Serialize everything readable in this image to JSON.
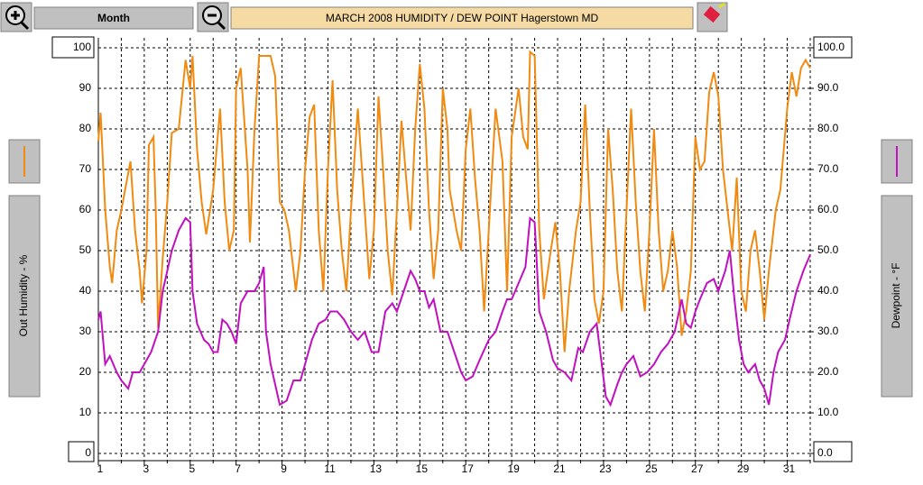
{
  "toolbar": {
    "period": "Month"
  },
  "chart_data": {
    "type": "line",
    "title": "MARCH 2008    HUMIDITY / DEW POINT  Hagerstown MD",
    "xlim": [
      1,
      32
    ],
    "xticks": [
      1,
      3,
      5,
      7,
      9,
      11,
      13,
      15,
      17,
      19,
      21,
      23,
      25,
      27,
      29,
      31
    ],
    "x_minor_ticks": [
      2,
      4,
      6,
      8,
      10,
      12,
      14,
      16,
      18,
      20,
      22,
      24,
      26,
      28,
      30,
      32
    ],
    "ylim": [
      0,
      100
    ],
    "yticks": [
      0,
      10,
      20,
      30,
      40,
      50,
      60,
      70,
      80,
      90,
      100
    ],
    "y2lim": [
      0,
      100
    ],
    "y2ticks": [
      {
        "value": 0,
        "label": "0.0"
      },
      {
        "value": 10,
        "label": "10.0"
      },
      {
        "value": 20,
        "label": "20.0"
      },
      {
        "value": 30,
        "label": "30.0"
      },
      {
        "value": 40,
        "label": "40.0"
      },
      {
        "value": 50,
        "label": "50.0"
      },
      {
        "value": 60,
        "label": "60.0"
      },
      {
        "value": 70,
        "label": "70.0"
      },
      {
        "value": 80,
        "label": "80.0"
      },
      {
        "value": 90,
        "label": "90.0"
      },
      {
        "value": 100,
        "label": "100.0"
      }
    ],
    "grid": true,
    "series": [
      {
        "name": "Out Humidity - %",
        "color": "#f08a10",
        "x": [
          1.0,
          1.1,
          1.3,
          1.5,
          1.6,
          1.8,
          2.0,
          2.2,
          2.4,
          2.6,
          2.8,
          2.9,
          3.1,
          3.2,
          3.4,
          3.5,
          3.6,
          3.8,
          4.0,
          4.2,
          4.5,
          4.8,
          5.0,
          5.1,
          5.3,
          5.5,
          5.7,
          6.0,
          6.3,
          6.5,
          6.7,
          6.9,
          7.0,
          7.2,
          7.5,
          7.6,
          7.8,
          8.0,
          8.5,
          8.7,
          8.9,
          9.1,
          9.3,
          9.6,
          9.8,
          10.0,
          10.2,
          10.4,
          10.6,
          10.8,
          11.0,
          11.2,
          11.4,
          11.6,
          11.8,
          12.0,
          12.3,
          12.6,
          12.8,
          13.0,
          13.2,
          13.4,
          13.6,
          13.8,
          14.0,
          14.2,
          14.4,
          14.6,
          14.8,
          15.0,
          15.2,
          15.4,
          15.6,
          15.8,
          16.0,
          16.2,
          16.3,
          16.6,
          16.8,
          17.0,
          17.2,
          17.4,
          17.6,
          17.8,
          18.0,
          18.3,
          18.6,
          18.8,
          19.0,
          19.3,
          19.5,
          19.7,
          19.8,
          20.0,
          20.2,
          20.4,
          20.7,
          20.9,
          21.1,
          21.3,
          21.5,
          21.8,
          22.0,
          22.2,
          22.4,
          22.6,
          22.8,
          23.0,
          23.2,
          23.4,
          23.6,
          23.8,
          24.0,
          24.2,
          24.4,
          24.6,
          24.8,
          25.0,
          25.2,
          25.4,
          25.6,
          25.8,
          26.0,
          26.2,
          26.4,
          26.6,
          26.8,
          27.0,
          27.2,
          27.4,
          27.6,
          27.8,
          28.0,
          28.2,
          28.4,
          28.6,
          28.8,
          29.0,
          29.2,
          29.4,
          29.6,
          29.8,
          30.0,
          30.2,
          30.5,
          30.7,
          31.0,
          31.2,
          31.4,
          31.6,
          31.8,
          32.0
        ],
        "values": [
          77,
          84,
          60,
          46,
          42,
          55,
          60,
          66,
          72,
          55,
          45,
          37,
          50,
          76,
          78,
          60,
          31,
          48,
          62,
          79,
          80,
          97,
          90,
          98,
          75,
          62,
          54,
          65,
          85,
          62,
          50,
          55,
          90,
          95,
          70,
          52,
          80,
          98,
          98,
          93,
          62,
          60,
          55,
          40,
          50,
          70,
          83,
          86,
          55,
          40,
          70,
          92,
          65,
          50,
          40,
          60,
          85,
          60,
          43,
          55,
          88,
          70,
          50,
          39,
          60,
          82,
          68,
          55,
          80,
          96,
          85,
          60,
          43,
          55,
          90,
          80,
          65,
          55,
          50,
          75,
          85,
          68,
          55,
          35,
          55,
          85,
          72,
          40,
          78,
          90,
          78,
          75,
          99,
          98,
          55,
          38,
          50,
          57,
          45,
          25,
          40,
          55,
          62,
          86,
          60,
          38,
          32,
          40,
          80,
          65,
          45,
          35,
          60,
          85,
          62,
          45,
          35,
          55,
          80,
          55,
          40,
          45,
          55,
          46,
          29,
          35,
          45,
          78,
          70,
          72,
          89,
          94,
          88,
          70,
          60,
          50,
          68,
          40,
          35,
          50,
          55,
          45,
          33,
          45,
          60,
          65,
          85,
          94,
          88,
          95,
          97,
          95
        ]
      },
      {
        "name": "Dewpoint - °F",
        "color": "#c010c0",
        "axis": "y2",
        "x": [
          1.0,
          1.1,
          1.3,
          1.5,
          1.8,
          2.0,
          2.3,
          2.5,
          2.8,
          3.0,
          3.3,
          3.6,
          3.8,
          4.0,
          4.2,
          4.5,
          4.8,
          5.0,
          5.1,
          5.3,
          5.6,
          5.8,
          6.0,
          6.2,
          6.4,
          6.6,
          6.8,
          7.0,
          7.2,
          7.5,
          7.8,
          8.0,
          8.2,
          8.3,
          8.5,
          8.7,
          8.9,
          9.2,
          9.5,
          9.8,
          10.0,
          10.3,
          10.6,
          10.9,
          11.1,
          11.4,
          11.7,
          12.0,
          12.3,
          12.6,
          12.9,
          13.2,
          13.5,
          13.8,
          14.0,
          14.3,
          14.6,
          14.8,
          15.0,
          15.2,
          15.4,
          15.6,
          15.9,
          16.2,
          16.5,
          16.8,
          17.0,
          17.3,
          17.6,
          18.0,
          18.3,
          18.6,
          18.8,
          19.0,
          19.3,
          19.6,
          19.8,
          20.0,
          20.2,
          20.5,
          20.8,
          21.0,
          21.3,
          21.6,
          21.9,
          22.1,
          22.4,
          22.7,
          22.9,
          23.1,
          23.3,
          23.6,
          23.8,
          24.0,
          24.3,
          24.6,
          24.9,
          25.2,
          25.5,
          25.8,
          26.1,
          26.4,
          26.6,
          26.8,
          27.0,
          27.2,
          27.5,
          27.8,
          28.0,
          28.3,
          28.5,
          28.7,
          28.9,
          29.1,
          29.3,
          29.6,
          29.8,
          30.0,
          30.2,
          30.4,
          30.6,
          30.9,
          31.1,
          31.4,
          31.7,
          32.0
        ],
        "values": [
          33,
          35,
          22,
          24,
          20,
          18,
          16,
          20,
          20,
          22,
          25,
          30,
          40,
          45,
          50,
          55,
          58,
          57,
          40,
          32,
          28,
          27,
          25,
          25,
          33,
          32,
          30,
          27,
          37,
          40,
          40,
          42,
          46,
          30,
          22,
          17,
          12,
          13,
          18,
          18,
          22,
          28,
          32,
          33,
          35,
          35,
          33,
          30,
          28,
          30,
          25,
          25,
          35,
          37,
          35,
          40,
          45,
          43,
          40,
          40,
          36,
          38,
          30,
          30,
          25,
          20,
          18,
          19,
          23,
          28,
          30,
          35,
          38,
          38,
          42,
          46,
          58,
          57,
          35,
          30,
          23,
          21,
          20,
          18,
          26,
          25,
          30,
          32,
          23,
          14,
          12,
          17,
          20,
          22,
          24,
          19,
          20,
          22,
          25,
          27,
          30,
          38,
          32,
          31,
          35,
          38,
          42,
          43,
          40,
          45,
          50,
          38,
          28,
          22,
          20,
          22,
          18,
          16,
          12,
          20,
          25,
          28,
          33,
          40,
          45,
          49
        ]
      }
    ]
  }
}
